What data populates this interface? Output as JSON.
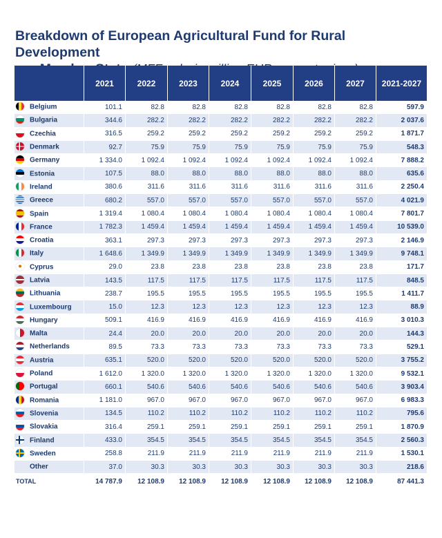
{
  "title": {
    "main_line1": "Breakdown of European Agricultural Fund for Rural Development",
    "main_line2": "per Member State",
    "subtitle": "(MFF only, in million EUR, current prices)"
  },
  "table": {
    "columns": [
      "",
      "2021",
      "2022",
      "2023",
      "2024",
      "2025",
      "2026",
      "2027",
      "2021-2027"
    ],
    "rows": [
      {
        "country": "Belgium",
        "flag": "linear-gradient(90deg,#000000 0 33%,#fdda24 33% 66%,#ef3340 66%)",
        "values": [
          "101.1",
          "82.8",
          "82.8",
          "82.8",
          "82.8",
          "82.8",
          "82.8",
          "597.9"
        ]
      },
      {
        "country": "Bulgaria",
        "flag": "linear-gradient(180deg,#ffffff 0 33%,#00966e 33% 66%,#d62612 66%)",
        "values": [
          "344.6",
          "282.2",
          "282.2",
          "282.2",
          "282.2",
          "282.2",
          "282.2",
          "2 037.6"
        ]
      },
      {
        "country": "Czechia",
        "flag": "linear-gradient(180deg,#ffffff 0 50%,#d7141a 50%)",
        "values": [
          "316.5",
          "259.2",
          "259.2",
          "259.2",
          "259.2",
          "259.2",
          "259.2",
          "1 871.7"
        ]
      },
      {
        "country": "Denmark",
        "flag": "linear-gradient(90deg,transparent 0 38%,#ffffff 38% 50%,transparent 50%),linear-gradient(180deg,#c8102e 0 44%,#ffffff 44% 56%,#c8102e 56%)",
        "values": [
          "92.7",
          "75.9",
          "75.9",
          "75.9",
          "75.9",
          "75.9",
          "75.9",
          "548.3"
        ]
      },
      {
        "country": "Germany",
        "flag": "linear-gradient(180deg,#000000 0 33%,#dd0000 33% 66%,#ffce00 66%)",
        "values": [
          "1 334.0",
          "1 092.4",
          "1 092.4",
          "1 092.4",
          "1 092.4",
          "1 092.4",
          "1 092.4",
          "7 888.2"
        ]
      },
      {
        "country": "Estonia",
        "flag": "linear-gradient(180deg,#0072ce 0 33%,#000000 33% 66%,#ffffff 66%)",
        "values": [
          "107.5",
          "88.0",
          "88.0",
          "88.0",
          "88.0",
          "88.0",
          "88.0",
          "635.6"
        ]
      },
      {
        "country": "Ireland",
        "flag": "linear-gradient(90deg,#169b62 0 33%,#ffffff 33% 66%,#ff883e 66%)",
        "values": [
          "380.6",
          "311.6",
          "311.6",
          "311.6",
          "311.6",
          "311.6",
          "311.6",
          "2 250.4"
        ]
      },
      {
        "country": "Greece",
        "flag": "repeating-linear-gradient(180deg,#0d5eaf 0 1.33px,#ffffff 1.33px 2.66px)",
        "values": [
          "680.2",
          "557.0",
          "557.0",
          "557.0",
          "557.0",
          "557.0",
          "557.0",
          "4 021.9"
        ]
      },
      {
        "country": "Spain",
        "flag": "linear-gradient(180deg,#aa151b 0 25%,#f1bf00 25% 75%,#aa151b 75%)",
        "values": [
          "1 319.4",
          "1 080.4",
          "1 080.4",
          "1 080.4",
          "1 080.4",
          "1 080.4",
          "1 080.4",
          "7 801.7"
        ]
      },
      {
        "country": "France",
        "flag": "linear-gradient(90deg,#002395 0 33%,#ffffff 33% 66%,#ed2939 66%)",
        "values": [
          "1 782.3",
          "1 459.4",
          "1 459.4",
          "1 459.4",
          "1 459.4",
          "1 459.4",
          "1 459.4",
          "10 539.0"
        ]
      },
      {
        "country": "Croatia",
        "flag": "linear-gradient(180deg,#ff0000 0 33%,#ffffff 33% 66%,#171796 66%)",
        "values": [
          "363.1",
          "297.3",
          "297.3",
          "297.3",
          "297.3",
          "297.3",
          "297.3",
          "2 146.9"
        ]
      },
      {
        "country": "Italy",
        "flag": "linear-gradient(90deg,#009246 0 33%,#ffffff 33% 66%,#ce2b37 66%)",
        "values": [
          "1 648.6",
          "1 349.9",
          "1 349.9",
          "1 349.9",
          "1 349.9",
          "1 349.9",
          "1 349.9",
          "9 748.1"
        ]
      },
      {
        "country": "Cyprus",
        "flag": "radial-gradient(circle at 50% 45%,#d57800 0 22%,#ffffff 24%)",
        "values": [
          "29.0",
          "23.8",
          "23.8",
          "23.8",
          "23.8",
          "23.8",
          "23.8",
          "171.7"
        ]
      },
      {
        "country": "Latvia",
        "flag": "linear-gradient(180deg,#9e3039 0 40%,#ffffff 40% 60%,#9e3039 60%)",
        "values": [
          "143.5",
          "117.5",
          "117.5",
          "117.5",
          "117.5",
          "117.5",
          "117.5",
          "848.5"
        ]
      },
      {
        "country": "Lithuania",
        "flag": "linear-gradient(180deg,#fdb913 0 33%,#006a44 33% 66%,#c1272d 66%)",
        "values": [
          "238.7",
          "195.5",
          "195.5",
          "195.5",
          "195.5",
          "195.5",
          "195.5",
          "1 411.7"
        ]
      },
      {
        "country": "Luxembourg",
        "flag": "linear-gradient(180deg,#ed2939 0 33%,#ffffff 33% 66%,#00a1de 66%)",
        "values": [
          "15.0",
          "12.3",
          "12.3",
          "12.3",
          "12.3",
          "12.3",
          "12.3",
          "88.9"
        ]
      },
      {
        "country": "Hungary",
        "flag": "linear-gradient(180deg,#ce2939 0 33%,#ffffff 33% 66%,#477050 66%)",
        "values": [
          "509.1",
          "416.9",
          "416.9",
          "416.9",
          "416.9",
          "416.9",
          "416.9",
          "3 010.3"
        ]
      },
      {
        "country": "Malta",
        "flag": "linear-gradient(90deg,#ffffff 0 50%,#cf142b 50%)",
        "values": [
          "24.4",
          "20.0",
          "20.0",
          "20.0",
          "20.0",
          "20.0",
          "20.0",
          "144.3"
        ]
      },
      {
        "country": "Netherlands",
        "flag": "linear-gradient(180deg,#ae1c28 0 33%,#ffffff 33% 66%,#21468b 66%)",
        "values": [
          "89.5",
          "73.3",
          "73.3",
          "73.3",
          "73.3",
          "73.3",
          "73.3",
          "529.1"
        ]
      },
      {
        "country": "Austria",
        "flag": "linear-gradient(180deg,#ed2939 0 33%,#ffffff 33% 66%,#ed2939 66%)",
        "values": [
          "635.1",
          "520.0",
          "520.0",
          "520.0",
          "520.0",
          "520.0",
          "520.0",
          "3 755.2"
        ]
      },
      {
        "country": "Poland",
        "flag": "linear-gradient(180deg,#ffffff 0 50%,#dc143c 50%)",
        "values": [
          "1 612.0",
          "1 320.0",
          "1 320.0",
          "1 320.0",
          "1 320.0",
          "1 320.0",
          "1 320.0",
          "9 532.1"
        ]
      },
      {
        "country": "Portugal",
        "flag": "linear-gradient(90deg,#006600 0 40%,#ff0000 40%)",
        "values": [
          "660.1",
          "540.6",
          "540.6",
          "540.6",
          "540.6",
          "540.6",
          "540.6",
          "3 903.4"
        ]
      },
      {
        "country": "Romania",
        "flag": "linear-gradient(90deg,#002b7f 0 33%,#fcd116 33% 66%,#ce1126 66%)",
        "values": [
          "1 181.0",
          "967.0",
          "967.0",
          "967.0",
          "967.0",
          "967.0",
          "967.0",
          "6 983.3"
        ]
      },
      {
        "country": "Slovenia",
        "flag": "linear-gradient(180deg,#ffffff 0 33%,#005da4 33% 66%,#ed1c24 66%)",
        "values": [
          "134.5",
          "110.2",
          "110.2",
          "110.2",
          "110.2",
          "110.2",
          "110.2",
          "795.6"
        ]
      },
      {
        "country": "Slovakia",
        "flag": "linear-gradient(180deg,#ffffff 0 33%,#0b4ea2 33% 66%,#ee1c25 66%)",
        "values": [
          "316.4",
          "259.1",
          "259.1",
          "259.1",
          "259.1",
          "259.1",
          "259.1",
          "1 870.9"
        ]
      },
      {
        "country": "Finland",
        "flag": "linear-gradient(90deg,transparent 0 32%,#003580 32% 48%,transparent 48%),linear-gradient(180deg,#ffffff 0 42%,#003580 42% 58%,#ffffff 58%)",
        "values": [
          "433.0",
          "354.5",
          "354.5",
          "354.5",
          "354.5",
          "354.5",
          "354.5",
          "2 560.3"
        ]
      },
      {
        "country": "Sweden",
        "flag": "linear-gradient(90deg,transparent 0 32%,#fecc00 32% 48%,transparent 48%),linear-gradient(180deg,#006aa7 0 42%,#fecc00 42% 58%,#006aa7 58%)",
        "values": [
          "258.8",
          "211.9",
          "211.9",
          "211.9",
          "211.9",
          "211.9",
          "211.9",
          "1 530.1"
        ]
      },
      {
        "country": "Other",
        "flag": "",
        "values": [
          "37.0",
          "30.3",
          "30.3",
          "30.3",
          "30.3",
          "30.3",
          "30.3",
          "218.6"
        ]
      }
    ],
    "total": {
      "label": "TOTAL",
      "values": [
        "14 787.9",
        "12 108.9",
        "12 108.9",
        "12 108.9",
        "12 108.9",
        "12 108.9",
        "12 108.9",
        "87 441.3"
      ]
    }
  }
}
